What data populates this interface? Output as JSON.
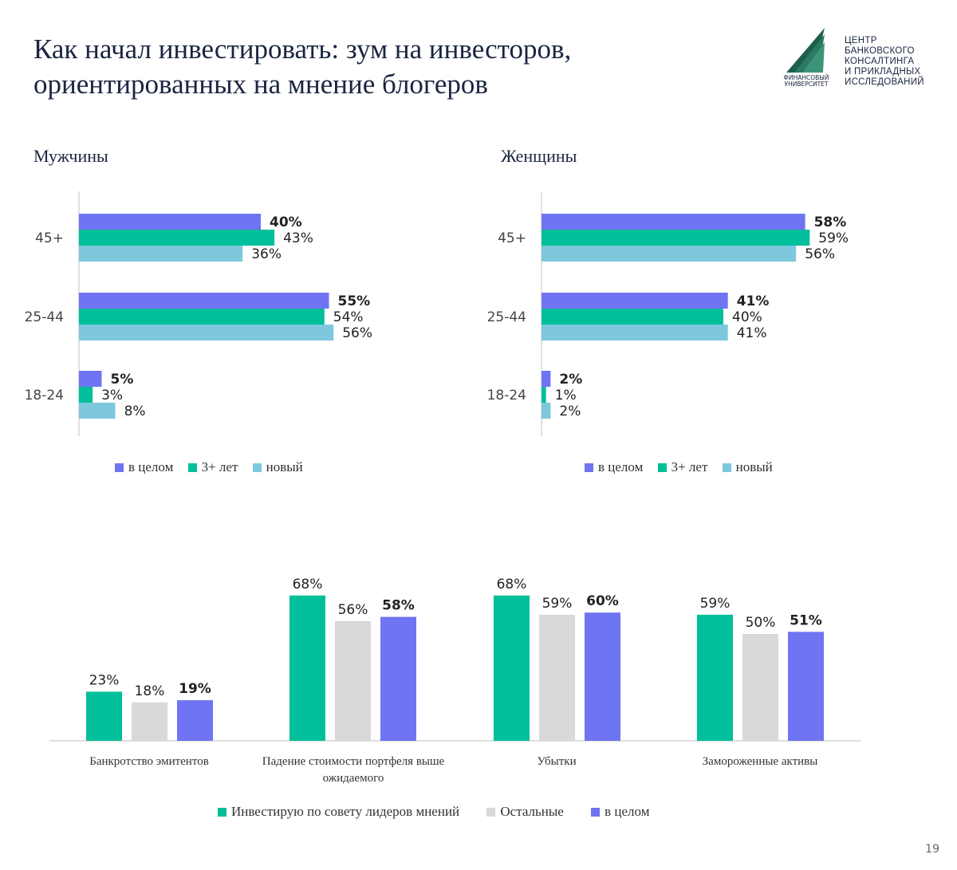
{
  "page": {
    "title_line1": "Как начал инвестировать: зум на инвесторов,",
    "title_line2": "ориентированных на мнение блогеров",
    "page_number": "19"
  },
  "logo": {
    "university_line1": "ФИНАНСОВЫЙ",
    "university_line2": "УНИВЕРСИТЕТ",
    "center_lines": [
      "ЦЕНТР",
      "БАНКОВСКОГО",
      "КОНСАЛТИНГА",
      "И ПРИКЛАДНЫХ",
      "ИССЛЕДОВАНИЙ"
    ]
  },
  "colors": {
    "overall": "#6f74f2",
    "three_plus": "#00bf9a",
    "new": "#7ec8de",
    "others": "#d9d9d9"
  },
  "chart_data": [
    {
      "type": "bar",
      "orientation": "horizontal",
      "title": "Мужчины",
      "categories": [
        "45+",
        "25-44",
        "18-24"
      ],
      "series": [
        {
          "name": "в целом",
          "values": [
            40,
            55,
            5
          ],
          "labels": [
            "40%",
            "55%",
            "5%"
          ],
          "color": "#6f74f2",
          "bold": true
        },
        {
          "name": "3+ лет",
          "values": [
            43,
            54,
            3
          ],
          "labels": [
            "43%",
            "54%",
            "3%"
          ],
          "color": "#00bf9a"
        },
        {
          "name": "новый",
          "values": [
            36,
            56,
            8
          ],
          "labels": [
            "36%",
            "56%",
            "8%"
          ],
          "color": "#7ec8de"
        }
      ],
      "legend": "bottom"
    },
    {
      "type": "bar",
      "orientation": "horizontal",
      "title": "Женщины",
      "categories": [
        "45+",
        "25-44",
        "18-24"
      ],
      "series": [
        {
          "name": "в целом",
          "values": [
            58,
            41,
            2
          ],
          "labels": [
            "58%",
            "41%",
            "2%"
          ],
          "color": "#6f74f2",
          "bold": true
        },
        {
          "name": "3+ лет",
          "values": [
            59,
            40,
            1
          ],
          "labels": [
            "59%",
            "40%",
            "1%"
          ],
          "color": "#00bf9a"
        },
        {
          "name": "новый",
          "values": [
            56,
            41,
            2
          ],
          "labels": [
            "56%",
            "41%",
            "2%"
          ],
          "color": "#7ec8de"
        }
      ],
      "legend": "bottom"
    },
    {
      "type": "bar",
      "orientation": "vertical",
      "categories": [
        "Банкротство эмитентов",
        "Падение стоимости портфеля выше ожидаемого",
        "Убытки",
        "Замороженные активы"
      ],
      "category_lines": [
        [
          "Банкротство эмитентов"
        ],
        [
          "Падение стоимости портфеля выше",
          "ожидаемого"
        ],
        [
          "Убытки"
        ],
        [
          "Замороженные активы"
        ]
      ],
      "series": [
        {
          "name": "Инвестирую по совету лидеров мнений",
          "values": [
            23,
            68,
            68,
            59
          ],
          "labels": [
            "23%",
            "68%",
            "68%",
            "59%"
          ],
          "color": "#00bf9a"
        },
        {
          "name": "Остальные",
          "values": [
            18,
            56,
            59,
            50
          ],
          "labels": [
            "18%",
            "56%",
            "59%",
            "50%"
          ],
          "color": "#d9d9d9"
        },
        {
          "name": "в целом",
          "values": [
            19,
            58,
            60,
            51
          ],
          "labels": [
            "19%",
            "58%",
            "60%",
            "51%"
          ],
          "color": "#6f74f2",
          "bold": true
        }
      ],
      "legend": "bottom"
    }
  ]
}
